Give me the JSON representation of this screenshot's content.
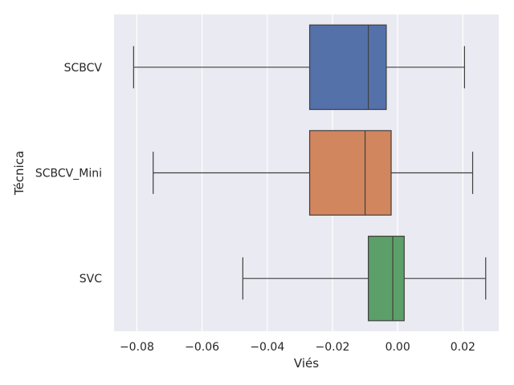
{
  "chart_data": {
    "type": "box",
    "orientation": "horizontal",
    "xlabel": "Viés",
    "ylabel": "Técnica",
    "xlim": [
      -0.087,
      0.031
    ],
    "xticks": [
      -0.08,
      -0.06,
      -0.04,
      -0.02,
      0.0,
      0.02
    ],
    "xtick_labels": [
      "−0.08",
      "−0.06",
      "−0.04",
      "−0.02",
      "0.00",
      "0.02"
    ],
    "grid": true,
    "background": "#eaeaf2",
    "grid_color": "#ffffff",
    "line_color": "#3f3f3f",
    "boxes": [
      {
        "label": "SCBCV",
        "color": "#5471aa",
        "whisker_low": -0.081,
        "q1": -0.027,
        "median": -0.009,
        "q3": -0.0035,
        "whisker_high": 0.0205
      },
      {
        "label": "SCBCV_Mini",
        "color": "#d1865e",
        "whisker_low": -0.075,
        "q1": -0.027,
        "median": -0.01,
        "q3": -0.002,
        "whisker_high": 0.023
      },
      {
        "label": "SVC",
        "color": "#5c9f68",
        "whisker_low": -0.0475,
        "q1": -0.009,
        "median": -0.0015,
        "q3": 0.002,
        "whisker_high": 0.027
      }
    ]
  }
}
